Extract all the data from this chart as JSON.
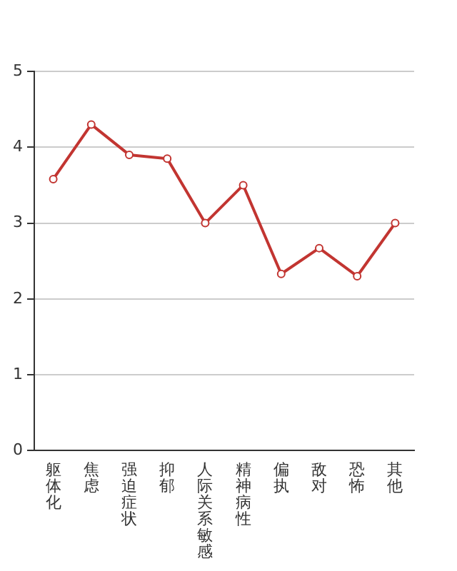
{
  "chart_data": {
    "type": "line",
    "categories": [
      "躯体化",
      "焦虑",
      "强迫症状",
      "抑郁",
      "人际关系敏感",
      "精神病性",
      "偏执",
      "敌对",
      "恐怖",
      "其他"
    ],
    "series": [
      {
        "color": "#c23531",
        "values": [
          3.58,
          4.3,
          3.9,
          3.85,
          3.0,
          3.5,
          2.33,
          2.67,
          2.3,
          3.0
        ]
      }
    ],
    "ylim": [
      0,
      5
    ],
    "yticks": [
      0,
      1,
      2,
      3,
      4,
      5
    ],
    "grid": "y",
    "legend": false,
    "marker": "circle",
    "line_style": "solid"
  }
}
